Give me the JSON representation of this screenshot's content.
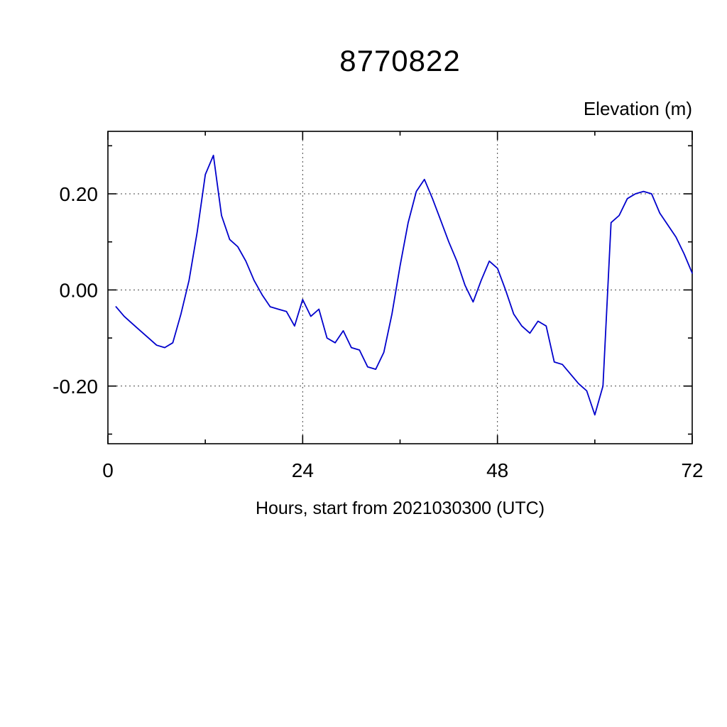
{
  "page": {
    "background": "#ffffff"
  },
  "chart_data": {
    "type": "line",
    "title": "8770822",
    "ylabel": "Elevation (m)",
    "xlabel": "Hours, start from 2021030300 (UTC)",
    "x_range": [
      0,
      72
    ],
    "y_range": [
      -0.32,
      0.33
    ],
    "x_major_ticks": [
      0,
      24,
      48,
      72
    ],
    "x_tick_labels": [
      "0",
      "24",
      "48",
      "72"
    ],
    "x_minor_ticks": [
      12,
      36,
      60
    ],
    "y_major_ticks": [
      -0.2,
      0,
      0.2
    ],
    "y_tick_labels": [
      "-0.20",
      "0.00",
      "0.20"
    ],
    "y_minor_ticks": [
      -0.3,
      -0.1,
      0.1,
      0.3
    ],
    "grid": "dashed-at-major-ticks",
    "legend": "none",
    "line_color": "#0000cc",
    "series": [
      {
        "name": "elevation",
        "color": "#0000cc",
        "x": [
          1,
          2,
          3,
          4,
          5,
          6,
          7,
          8,
          9,
          10,
          11,
          12,
          13,
          14,
          15,
          16,
          17,
          18,
          19,
          20,
          21,
          22,
          23,
          24,
          25,
          26,
          27,
          28,
          29,
          30,
          31,
          32,
          33,
          34,
          35,
          36,
          37,
          38,
          39,
          40,
          41,
          42,
          43,
          44,
          45,
          46,
          47,
          48,
          49,
          50,
          51,
          52,
          53,
          54,
          55,
          56,
          57,
          58,
          59,
          60,
          61,
          62,
          63,
          64,
          65,
          66,
          67,
          68,
          69,
          70,
          71,
          72
        ],
        "y": [
          -0.035,
          -0.055,
          -0.07,
          -0.085,
          -0.1,
          -0.115,
          -0.12,
          -0.11,
          -0.05,
          0.02,
          0.12,
          0.24,
          0.28,
          0.155,
          0.105,
          0.09,
          0.06,
          0.02,
          -0.01,
          -0.035,
          -0.04,
          -0.045,
          -0.075,
          -0.02,
          -0.055,
          -0.04,
          -0.1,
          -0.11,
          -0.085,
          -0.12,
          -0.125,
          -0.16,
          -0.165,
          -0.13,
          -0.05,
          0.05,
          0.14,
          0.205,
          0.23,
          0.19,
          0.145,
          0.1,
          0.06,
          0.01,
          -0.025,
          0.02,
          0.06,
          0.045,
          0.0,
          -0.05,
          -0.075,
          -0.09,
          -0.065,
          -0.075,
          -0.15,
          -0.155,
          -0.175,
          -0.195,
          -0.21,
          -0.26,
          -0.2,
          0.14,
          0.155,
          0.19,
          0.2,
          0.205,
          0.2,
          0.16,
          0.135,
          0.11,
          0.075,
          0.035
        ]
      }
    ]
  }
}
